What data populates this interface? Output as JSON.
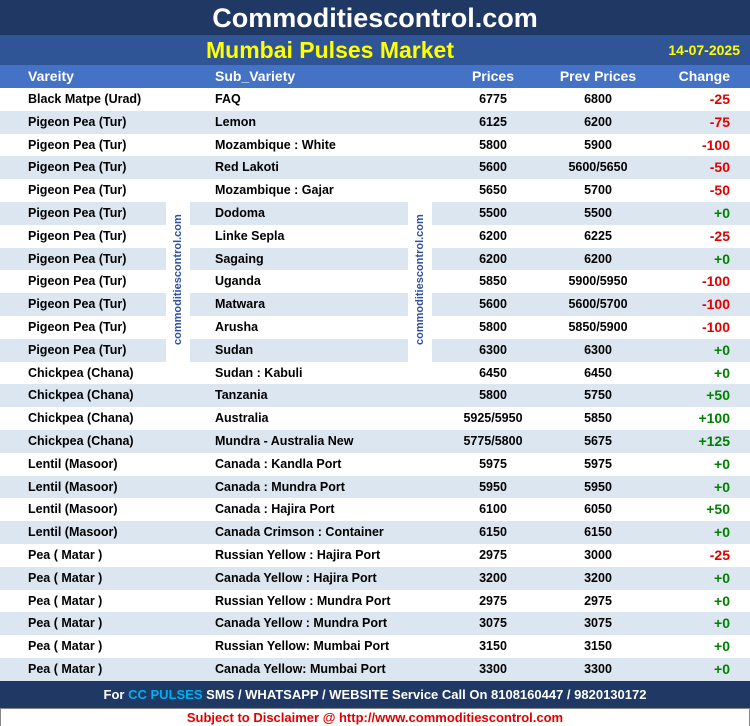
{
  "header": {
    "site": "Commoditiescontrol.com",
    "title": "Mumbai Pulses Market",
    "date": "14-07-2025"
  },
  "table": {
    "columns": [
      "Vareity",
      "Sub_Variety",
      "Prices",
      "Prev Prices",
      "Change"
    ],
    "rows": [
      [
        "Black Matpe (Urad)",
        "FAQ",
        6775,
        6800,
        "-25"
      ],
      [
        "Pigeon Pea (Tur)",
        "Lemon",
        6125,
        6200,
        "-75"
      ],
      [
        "Pigeon Pea (Tur)",
        "Mozambique : White",
        5800,
        5900,
        "-100"
      ],
      [
        "Pigeon Pea (Tur)",
        "Red Lakoti",
        5600,
        "5600/5650",
        "-50"
      ],
      [
        "Pigeon Pea (Tur)",
        "Mozambique : Gajar",
        5650,
        5700,
        "-50"
      ],
      [
        "Pigeon Pea (Tur)",
        "Dodoma",
        5500,
        5500,
        "+0"
      ],
      [
        "Pigeon Pea (Tur)",
        "Linke Sepla",
        6200,
        6225,
        "-25"
      ],
      [
        "Pigeon Pea (Tur)",
        "Sagaing",
        6200,
        6200,
        "+0"
      ],
      [
        "Pigeon Pea (Tur)",
        "Uganda",
        5850,
        "5900/5950",
        "-100"
      ],
      [
        "Pigeon Pea (Tur)",
        "Matwara",
        5600,
        "5600/5700",
        "-100"
      ],
      [
        "Pigeon Pea (Tur)",
        "Arusha",
        5800,
        "5850/5900",
        "-100"
      ],
      [
        "Pigeon Pea (Tur)",
        "Sudan",
        6300,
        6300,
        "+0"
      ],
      [
        "Chickpea (Chana)",
        "Sudan : Kabuli",
        6450,
        6450,
        "+0"
      ],
      [
        "Chickpea (Chana)",
        "Tanzania",
        5800,
        5750,
        "+50"
      ],
      [
        "Chickpea (Chana)",
        "Australia",
        "5925/5950",
        5850,
        "+100"
      ],
      [
        "Chickpea (Chana)",
        "Mundra - Australia New",
        "5775/5800",
        5675,
        "+125"
      ],
      [
        "Lentil (Masoor)",
        "Canada : Kandla Port",
        5975,
        5975,
        "+0"
      ],
      [
        "Lentil (Masoor)",
        "Canada : Mundra Port",
        5950,
        5950,
        "+0"
      ],
      [
        "Lentil (Masoor)",
        "Canada : Hajira Port",
        6100,
        6050,
        "+50"
      ],
      [
        "Lentil (Masoor)",
        "Canada Crimson : Container",
        6150,
        6150,
        "+0"
      ],
      [
        "Pea ( Matar )",
        "Russian Yellow : Hajira Port",
        2975,
        3000,
        "-25"
      ],
      [
        "Pea ( Matar )",
        "Canada Yellow : Hajira Port",
        3200,
        3200,
        "+0"
      ],
      [
        "Pea ( Matar )",
        "Russian Yellow : Mundra Port",
        2975,
        2975,
        "+0"
      ],
      [
        "Pea ( Matar )",
        "Canada Yellow : Mundra Port",
        3075,
        3075,
        "+0"
      ],
      [
        "Pea ( Matar )",
        "Russian Yellow: Mumbai Port",
        3150,
        3150,
        "+0"
      ],
      [
        "Pea ( Matar )",
        "Canada Yellow: Mumbai Port",
        3300,
        3300,
        "+0"
      ]
    ]
  },
  "watermark": "commoditiescontrol.com",
  "footer": {
    "pre": "For",
    "highlight": "CC PULSES",
    "post": "SMS / WHATSAPP / WEBSITE Service Call On 8108160447 / 9820130172",
    "disclaimer": "Subject to Disclaimer @  http://www.commoditiescontrol.com"
  }
}
